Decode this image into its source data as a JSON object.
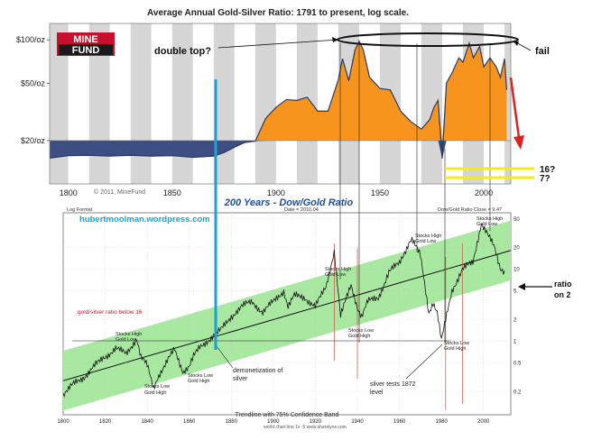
{
  "colors": {
    "upper_fill": "#f7941d",
    "lower_fill": "#3d4f82",
    "band": "#a8e8a0",
    "plot_bg": "#e8e8e8",
    "stripe": "#d0d0d0",
    "blue_line": "#1e9fd6",
    "red_arrow": "#e02020",
    "yellow_line": "#f2ec1b",
    "site_text": "#19a6c9",
    "chart2_title": "#1c4f9c"
  },
  "chart_data": [
    {
      "type": "area",
      "title": "Average Annual Gold-Silver Ratio: 1791 to present, log scale.",
      "xlim": [
        1791,
        2013
      ],
      "ylim": [
        10,
        130
      ],
      "y_scale": "log",
      "x_ticks": [
        "1800",
        "1850",
        "1900",
        "1950",
        "2000"
      ],
      "y_ticks": [
        "$100/oz",
        "$50/oz",
        "$20/oz"
      ],
      "y_tick_values": [
        100,
        50,
        20
      ],
      "baseline": 20,
      "watermark": "© 2011, MineFund",
      "logo": [
        "MINE",
        "FUND"
      ],
      "x": [
        1791,
        1800,
        1810,
        1820,
        1830,
        1840,
        1850,
        1860,
        1870,
        1875,
        1880,
        1885,
        1890,
        1895,
        1900,
        1905,
        1910,
        1915,
        1920,
        1925,
        1930,
        1932,
        1935,
        1938,
        1940,
        1942,
        1945,
        1950,
        1955,
        1960,
        1965,
        1970,
        1974,
        1976,
        1978,
        1980,
        1982,
        1985,
        1988,
        1990,
        1993,
        1995,
        1998,
        2000,
        2003,
        2006,
        2008,
        2010,
        2011
      ],
      "y": [
        15.1,
        15.7,
        15.8,
        15.6,
        15.8,
        15.6,
        15.7,
        15.3,
        15.6,
        16.5,
        18.0,
        19.4,
        19.8,
        28.5,
        34.0,
        38.5,
        38.0,
        40.0,
        32.0,
        32.0,
        53.0,
        74.0,
        52.0,
        85.0,
        98.0,
        85.0,
        55.0,
        46.0,
        45.0,
        32.0,
        27.0,
        24.0,
        28.0,
        34.0,
        38.0,
        15.0,
        50.0,
        60.0,
        75.0,
        70.0,
        95.0,
        75.0,
        90.0,
        65.0,
        75.0,
        65.0,
        55.0,
        74.0,
        45.0
      ]
    },
    {
      "type": "line",
      "title": "200 Years - Dow/Gold Ratio",
      "xlim": [
        1800,
        2013
      ],
      "ylim": [
        0.1,
        60
      ],
      "y_scale": "log",
      "x_ticks": [
        "1800",
        "1820",
        "1840",
        "1860",
        "1880",
        "1900",
        "1920",
        "1940",
        "1960",
        "1980",
        "2000"
      ],
      "y_ticks": [
        "50",
        "20",
        "10",
        "5",
        "2",
        "1",
        "0.5",
        "0.2"
      ],
      "y_tick_values": [
        50,
        20,
        10,
        5,
        2,
        1,
        0.5,
        0.2
      ],
      "header_left": "Log Format",
      "header_mid": "Date = 2010.04",
      "header_right": "Dow/Gold Ratio Close = 9.47",
      "footer": "Trendline with 75% Confidence Band",
      "footer_small": "world chart line 1s -5 www.sharelynx.com",
      "x": [
        1800,
        1805,
        1810,
        1815,
        1820,
        1825,
        1830,
        1835,
        1837,
        1840,
        1843,
        1845,
        1850,
        1853,
        1857,
        1860,
        1862,
        1865,
        1870,
        1875,
        1880,
        1885,
        1890,
        1895,
        1900,
        1905,
        1907,
        1910,
        1915,
        1920,
        1925,
        1929,
        1932,
        1937,
        1940,
        1942,
        1945,
        1950,
        1955,
        1960,
        1965,
        1966,
        1970,
        1974,
        1976,
        1978,
        1980,
        1985,
        1990,
        1995,
        1999,
        2001,
        2005,
        2008,
        2010
      ],
      "y": [
        0.18,
        0.25,
        0.32,
        0.45,
        0.6,
        0.8,
        0.65,
        1.1,
        0.6,
        0.45,
        0.22,
        0.32,
        0.55,
        0.75,
        0.38,
        0.45,
        0.6,
        0.8,
        1.1,
        1.4,
        2.2,
        3.0,
        3.5,
        2.5,
        3.5,
        5.0,
        3.0,
        4.2,
        4.0,
        3.0,
        5.5,
        18.0,
        2.2,
        6.0,
        3.0,
        2.2,
        3.5,
        4.0,
        9.0,
        12.0,
        25.0,
        26.0,
        15.0,
        2.5,
        3.5,
        2.5,
        1.0,
        5.0,
        10.0,
        12.0,
        44.0,
        35.0,
        20.0,
        10.0,
        9.47
      ]
    }
  ],
  "annotations": {
    "double_top": "double top?",
    "fail": "fail",
    "q16": "16?",
    "q7": "7?",
    "site": "hubertmoolman.wordpress.com",
    "gs_below": "gold/silver ratio below 16",
    "demonetization": [
      "demonetization of",
      "silver"
    ],
    "silver_tests": [
      "silver tests 1872",
      "level"
    ],
    "ratio_cut": [
      "ratio",
      "on 2"
    ],
    "stocks_high_1": [
      "Stocks High",
      "Gold Low"
    ],
    "stocks_low_1": [
      "Stocks Low",
      "Gold High"
    ],
    "stocks_low_2": [
      "Stocks Low",
      "Gold High"
    ],
    "stocks_high_2": [
      "Stocks High",
      "Gold Low"
    ],
    "stocks_low_3": [
      "Stocks Low",
      "Gold High"
    ],
    "stocks_high_3": [
      "Stocks High",
      "Gold Low"
    ],
    "stocks_low_4": [
      "Stocks Low",
      "Gold High"
    ],
    "stocks_high_4": [
      "Stocks High",
      "Gold Low"
    ]
  }
}
